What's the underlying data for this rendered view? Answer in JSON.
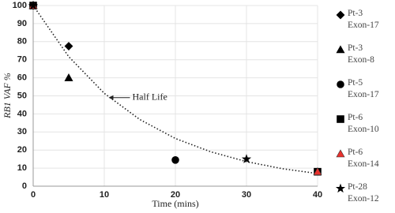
{
  "chart_data": {
    "type": "scatter",
    "x_label": "Time (mins)",
    "y_label": "RB1 VAF %",
    "xlim": [
      0,
      40
    ],
    "xticks": [
      0,
      10,
      20,
      30,
      40
    ],
    "ylim": [
      0,
      100
    ],
    "yticks": [
      0,
      10,
      20,
      30,
      40,
      50,
      60,
      70,
      80,
      90,
      100
    ],
    "grid": true,
    "series": [
      {
        "name": "Pt-3 Exon-17",
        "marker": "diamond",
        "color": "#000000",
        "x": [
          0,
          5
        ],
        "values": [
          100,
          77.5
        ]
      },
      {
        "name": "Pt-3 Exon-8",
        "marker": "triangle",
        "color": "#000000",
        "x": [
          0,
          5
        ],
        "values": [
          100,
          60
        ]
      },
      {
        "name": "Pt-5 Exon-17",
        "marker": "circle",
        "color": "#000000",
        "x": [
          0,
          20
        ],
        "values": [
          100,
          14.5
        ]
      },
      {
        "name": "Pt-6 Exon-10",
        "marker": "square",
        "color": "#000000",
        "x": [
          0,
          40
        ],
        "values": [
          100,
          8
        ]
      },
      {
        "name": "Pt-6 Exon-14",
        "marker": "triangle",
        "color": "#e8322e",
        "x": [
          0,
          40
        ],
        "values": [
          100,
          8
        ]
      },
      {
        "name": "Pt-28 Exon-12",
        "marker": "star",
        "color": "#000000",
        "x": [
          0,
          30
        ],
        "values": [
          100,
          15
        ]
      }
    ],
    "trendline": {
      "x": [
        0,
        5,
        10,
        15,
        20,
        25,
        30,
        35,
        40
      ],
      "values": [
        100,
        71.7,
        51.4,
        36.9,
        26.4,
        19,
        13.6,
        9.7,
        7
      ]
    },
    "annotation": {
      "text": "Half Life",
      "x": 10.5,
      "y": 49
    }
  }
}
